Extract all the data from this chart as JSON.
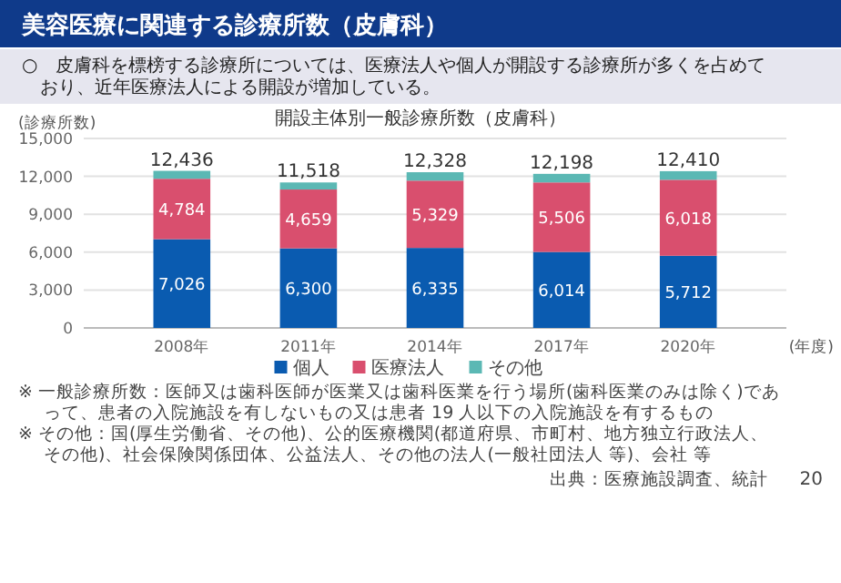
{
  "chart_data": {
    "type": "bar",
    "title": "美容医療に関連する診療所数（皮膚科）",
    "subtitle": "開設主体別一般診療所数（皮膚科）",
    "ylabel": "(診療所数)",
    "xlabel": "(年度)",
    "categories": [
      "2008年",
      "2011年",
      "2014年",
      "2017年",
      "2020年"
    ],
    "stacked": true,
    "series": [
      {
        "name": "個人",
        "color": "#0a5bb0",
        "values": [
          7026,
          6300,
          6335,
          6014,
          5712
        ],
        "value_labels": [
          "7,026",
          "6,300",
          "6,335",
          "6,014",
          "5,712"
        ]
      },
      {
        "name": "医療法人",
        "color": "#d94f6e",
        "values": [
          4784,
          4659,
          5329,
          5506,
          6018
        ],
        "value_labels": [
          "4,784",
          "4,659",
          "5,329",
          "5,506",
          "6,018"
        ]
      },
      {
        "name": "その他",
        "color": "#5bb8b4",
        "values": [
          626,
          559,
          664,
          678,
          680
        ]
      }
    ],
    "totals": [
      "12,436",
      "11,518",
      "12,328",
      "12,198",
      "12,410"
    ],
    "ylim": [
      0,
      15000
    ],
    "yticks": [
      {
        "value": 0,
        "label": "0"
      },
      {
        "value": 3000,
        "label": "3,000"
      },
      {
        "value": 6000,
        "label": "6,000"
      },
      {
        "value": 9000,
        "label": "9,000"
      },
      {
        "value": 12000,
        "label": "12,000"
      },
      {
        "value": 15000,
        "label": "15,000"
      }
    ],
    "grid": "y",
    "legend": "bottom",
    "annotations": [
      "○　皮膚科を標榜する診療所については、医療法人や個人が開設する診療所が多くを占めており、近年医療法人による開設が増加している。",
      "※ 一般診療所数：医師又は歯科医師が医業又は歯科医業を行う場所(歯科医業のみは除く)であって、患者の入院施設を有しないもの又は患者 19 人以下の入院施設を有するもの",
      "※ その他：国(厚生労働省、その他)、公的医療機関(都道府県、市町村、地方独立行政法人、その他)、社会保険関係団体、公益法人、その他の法人(一般社団法人 等)、会社 等",
      "出典：医療施設調査、統計",
      "20"
    ]
  }
}
